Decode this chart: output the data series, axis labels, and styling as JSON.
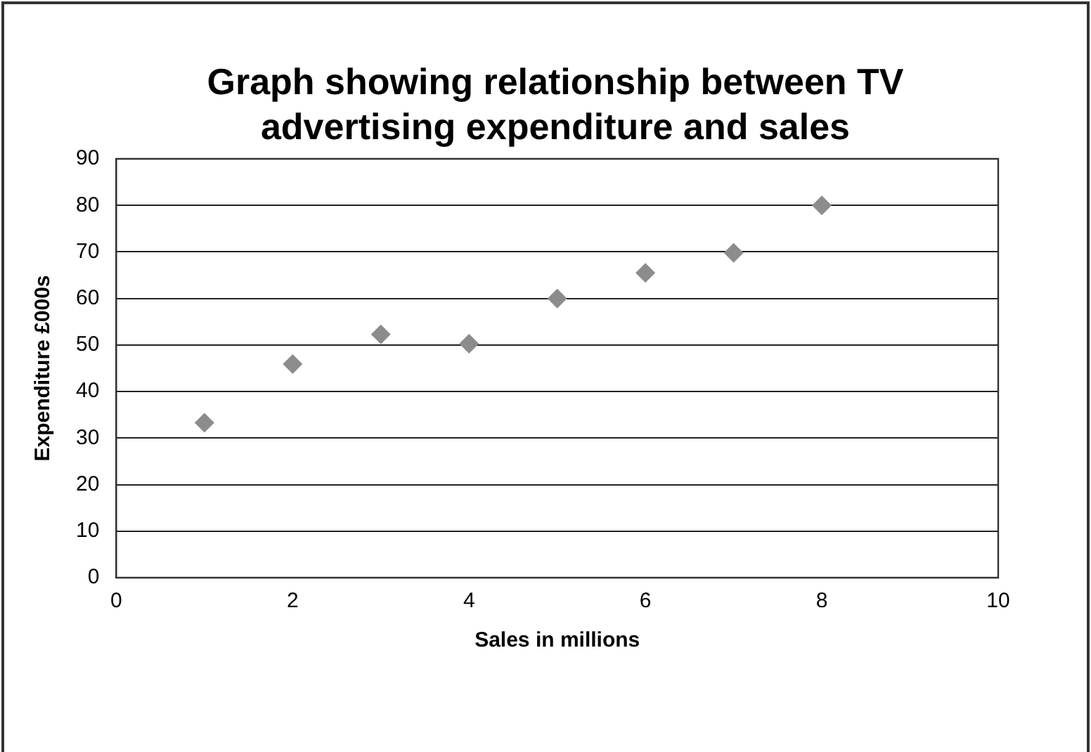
{
  "chart_data": {
    "type": "scatter",
    "title": "Graph showing relationship between TV advertising expenditure and sales",
    "xlabel": "Sales in millions",
    "ylabel": "Expenditure £000s",
    "x": [
      1,
      2,
      3,
      4,
      5,
      6,
      7,
      8
    ],
    "values": [
      33.3,
      45.9,
      52.3,
      50.3,
      60,
      65.5,
      69.8,
      80
    ],
    "color": "#8c8c8c",
    "marker": "diamond",
    "xlim": [
      0,
      10
    ],
    "xticks": [
      0,
      2,
      4,
      6,
      8,
      10
    ],
    "ylim": [
      0,
      90
    ],
    "yticks": [
      0,
      10,
      20,
      30,
      40,
      50,
      60,
      70,
      80,
      90
    ],
    "grid": "y",
    "legend": false
  }
}
